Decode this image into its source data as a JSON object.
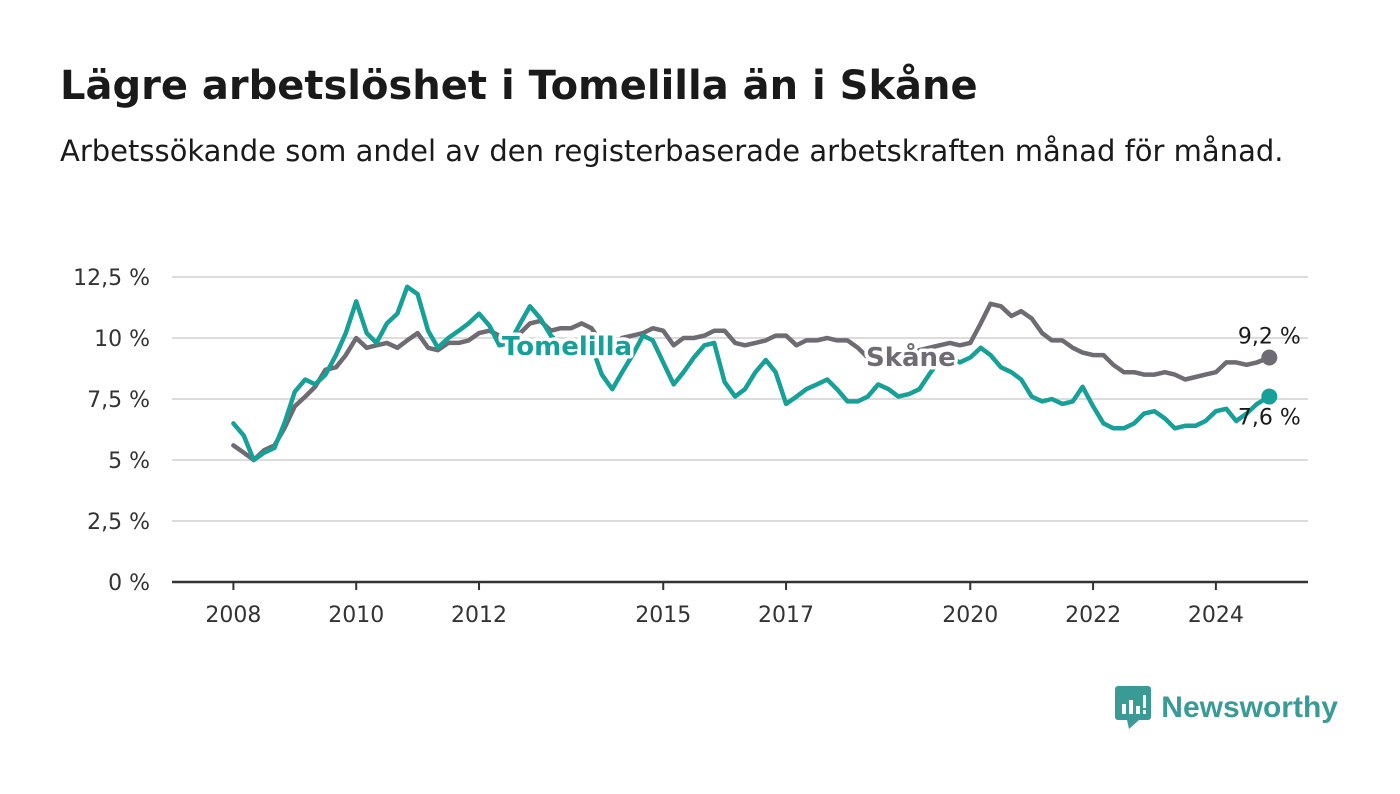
{
  "header": {
    "title": "Lägre arbetslöshet i Tomelilla än i Skåne",
    "subtitle": "Arbetssökande som andel av den registerbaserade arbetskraften månad för månad."
  },
  "brand": {
    "name": "Newsworthy",
    "icon": "newsworthy-logo-icon",
    "color": "#3a9a95"
  },
  "chart_data": {
    "type": "line",
    "title": "Lägre arbetslöshet i Tomelilla än i Skåne",
    "subtitle": "Arbetssökande som andel av den registerbaserade arbetskraften månad för månad.",
    "xlabel": "",
    "ylabel": "",
    "xlim": [
      2007,
      2025.5
    ],
    "ylim": [
      0,
      12.5
    ],
    "x_ticks": [
      2008,
      2010,
      2012,
      2015,
      2017,
      2020,
      2022,
      2024
    ],
    "y_ticks": [
      0,
      2.5,
      5,
      7.5,
      10,
      12.5
    ],
    "y_tick_labels": [
      "0 %",
      "2,5 %",
      "5 %",
      "7,5 %",
      "10 %",
      "12,5 %"
    ],
    "grid": "horizontal",
    "legend": "inline labels",
    "series": [
      {
        "name": "Skåne",
        "color": "#6e6b73",
        "end_label": "9,2 %",
        "x": [
          2008,
          2008.17,
          2008.33,
          2008.5,
          2008.67,
          2008.83,
          2009,
          2009.17,
          2009.33,
          2009.5,
          2009.67,
          2009.83,
          2010,
          2010.17,
          2010.33,
          2010.5,
          2010.67,
          2010.83,
          2011,
          2011.17,
          2011.33,
          2011.5,
          2011.67,
          2011.83,
          2012,
          2012.17,
          2012.33,
          2012.5,
          2012.67,
          2012.83,
          2013,
          2013.17,
          2013.33,
          2013.5,
          2013.67,
          2013.83,
          2014,
          2014.17,
          2014.33,
          2014.5,
          2014.67,
          2014.83,
          2015,
          2015.17,
          2015.33,
          2015.5,
          2015.67,
          2015.83,
          2016,
          2016.17,
          2016.33,
          2016.5,
          2016.67,
          2016.83,
          2017,
          2017.17,
          2017.33,
          2017.5,
          2017.67,
          2017.83,
          2018,
          2018.17,
          2018.33,
          2018.5,
          2018.67,
          2018.83,
          2019,
          2019.17,
          2019.33,
          2019.5,
          2019.67,
          2019.83,
          2020,
          2020.17,
          2020.33,
          2020.5,
          2020.67,
          2020.83,
          2021,
          2021.17,
          2021.33,
          2021.5,
          2021.67,
          2021.83,
          2022,
          2022.17,
          2022.33,
          2022.5,
          2022.67,
          2022.83,
          2023,
          2023.17,
          2023.33,
          2023.5,
          2023.67,
          2023.83,
          2024,
          2024.17,
          2024.33,
          2024.5,
          2024.67,
          2024.87
        ],
        "y": [
          5.6,
          5.3,
          5.0,
          5.4,
          5.6,
          6.3,
          7.2,
          7.6,
          8.0,
          8.7,
          8.8,
          9.3,
          10.0,
          9.6,
          9.7,
          9.8,
          9.6,
          9.9,
          10.2,
          9.6,
          9.5,
          9.8,
          9.8,
          9.9,
          10.2,
          10.3,
          10.1,
          10.0,
          10.2,
          10.6,
          10.7,
          10.3,
          10.4,
          10.4,
          10.6,
          10.4,
          9.8,
          9.7,
          10.0,
          10.1,
          10.2,
          10.4,
          10.3,
          9.7,
          10.0,
          10.0,
          10.1,
          10.3,
          10.3,
          9.8,
          9.7,
          9.8,
          9.9,
          10.1,
          10.1,
          9.7,
          9.9,
          9.9,
          10.0,
          9.9,
          9.9,
          9.6,
          9.2,
          9.1,
          9.2,
          9.4,
          9.4,
          9.5,
          9.6,
          9.7,
          9.8,
          9.7,
          9.8,
          10.6,
          11.4,
          11.3,
          10.9,
          11.1,
          10.8,
          10.2,
          9.9,
          9.9,
          9.6,
          9.4,
          9.3,
          9.3,
          8.9,
          8.6,
          8.6,
          8.5,
          8.5,
          8.6,
          8.5,
          8.3,
          8.4,
          8.5,
          8.6,
          9.0,
          9.0,
          8.9,
          9.0,
          9.2
        ]
      },
      {
        "name": "Tomelilla",
        "color": "#17a098",
        "end_label": "7,6 %",
        "x": [
          2008,
          2008.17,
          2008.33,
          2008.5,
          2008.67,
          2008.83,
          2009,
          2009.17,
          2009.33,
          2009.5,
          2009.67,
          2009.83,
          2010,
          2010.17,
          2010.33,
          2010.5,
          2010.67,
          2010.83,
          2011,
          2011.17,
          2011.33,
          2011.5,
          2011.67,
          2011.83,
          2012,
          2012.17,
          2012.33,
          2012.5,
          2012.67,
          2012.83,
          2013,
          2013.17,
          2013.33,
          2013.5,
          2013.67,
          2013.83,
          2014,
          2014.17,
          2014.33,
          2014.5,
          2014.67,
          2014.83,
          2015,
          2015.17,
          2015.33,
          2015.5,
          2015.67,
          2015.83,
          2016,
          2016.17,
          2016.33,
          2016.5,
          2016.67,
          2016.83,
          2017,
          2017.17,
          2017.33,
          2017.5,
          2017.67,
          2017.83,
          2018,
          2018.17,
          2018.33,
          2018.5,
          2018.67,
          2018.83,
          2019,
          2019.17,
          2019.33,
          2019.5,
          2019.67,
          2019.83,
          2020,
          2020.17,
          2020.33,
          2020.5,
          2020.67,
          2020.83,
          2021,
          2021.17,
          2021.33,
          2021.5,
          2021.67,
          2021.83,
          2022,
          2022.17,
          2022.33,
          2022.5,
          2022.67,
          2022.83,
          2023,
          2023.17,
          2023.33,
          2023.5,
          2023.67,
          2023.83,
          2024,
          2024.17,
          2024.33,
          2024.5,
          2024.67,
          2024.87
        ],
        "y": [
          6.5,
          6.0,
          5.0,
          5.3,
          5.5,
          6.5,
          7.8,
          8.3,
          8.1,
          8.5,
          9.3,
          10.2,
          11.5,
          10.2,
          9.8,
          10.6,
          11.0,
          12.1,
          11.8,
          10.3,
          9.6,
          10.0,
          10.3,
          10.6,
          11.0,
          10.5,
          9.7,
          9.8,
          10.6,
          11.3,
          10.8,
          10.1,
          9.7,
          9.6,
          9.8,
          9.7,
          8.5,
          7.9,
          8.6,
          9.3,
          10.1,
          9.9,
          9.0,
          8.1,
          8.6,
          9.2,
          9.7,
          9.8,
          8.2,
          7.6,
          7.9,
          8.6,
          9.1,
          8.6,
          7.3,
          7.6,
          7.9,
          8.1,
          8.3,
          7.9,
          7.4,
          7.4,
          7.6,
          8.1,
          7.9,
          7.6,
          7.7,
          7.9,
          8.5,
          9.1,
          9.2,
          9.0,
          9.2,
          9.6,
          9.3,
          8.8,
          8.6,
          8.3,
          7.6,
          7.4,
          7.5,
          7.3,
          7.4,
          8.0,
          7.2,
          6.5,
          6.3,
          6.3,
          6.5,
          6.9,
          7.0,
          6.7,
          6.3,
          6.4,
          6.4,
          6.6,
          7.0,
          7.1,
          6.6,
          6.9,
          7.3,
          7.6
        ]
      }
    ]
  }
}
